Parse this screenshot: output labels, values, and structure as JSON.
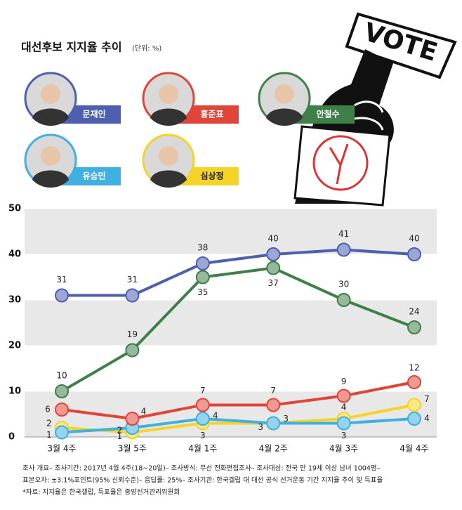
{
  "chart_data": {
    "type": "line",
    "title": "대선후보 지지율 추이",
    "subtitle": "(단위: %)",
    "illustration_text": "VOTE",
    "categories": [
      "3월 4주",
      "3월 5주",
      "4월 1주",
      "4월 2주",
      "4월 3주",
      "4월 4주"
    ],
    "series": [
      {
        "name": "문재인",
        "color": "#4d5fae",
        "values": [
          31,
          31,
          38,
          40,
          41,
          40
        ]
      },
      {
        "name": "홍준표",
        "color": "#e0453a",
        "values": [
          6,
          4,
          7,
          7,
          9,
          12
        ]
      },
      {
        "name": "안철수",
        "color": "#3f7f4a",
        "values": [
          10,
          19,
          35,
          37,
          30,
          24
        ]
      },
      {
        "name": "유승민",
        "color": "#3fb0e0",
        "values": [
          1,
          2,
          4,
          3,
          3,
          4
        ]
      },
      {
        "name": "심상정",
        "color": "#f5d327",
        "values": [
          2,
          1,
          3,
          3,
          4,
          7
        ]
      }
    ],
    "ylim": [
      0,
      50
    ],
    "yticks": [
      0,
      10,
      20,
      30,
      40,
      50
    ],
    "grid": true,
    "notes": [
      "조사 개요– 조사기간: 2017년 4월 4주(18~20일)– 조사방식: 무선 전화면접조사– 조사대상: 전국 만 19세 이상 남녀 1004명–",
      "표본오차: ±3.1%포인트(95% 신뢰수준)– 응답률: 25%– 조사기관: 한국갤럽  대 대선 공식 선거운동 기간 지지율 추이 및 득표율",
      "*자료: 지지율은 한국갤럽, 득표율은 중앙선거관리위원회"
    ]
  }
}
